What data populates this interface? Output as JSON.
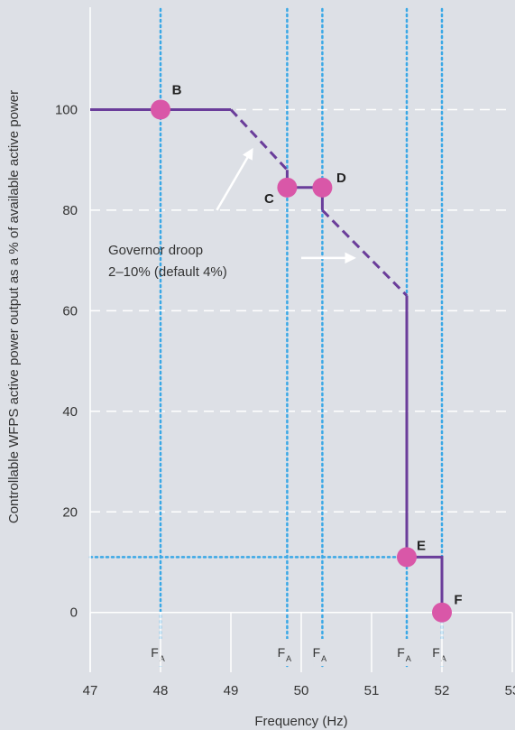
{
  "chart_data": {
    "type": "line",
    "title": "",
    "xlabel": "Frequency (Hz)",
    "ylabel": "Controllable WFPS active power output as a % of available active power",
    "xlim": [
      47,
      53
    ],
    "ylim": [
      -4,
      120
    ],
    "x_ticks": [
      47,
      48,
      49,
      50,
      51,
      52,
      53
    ],
    "y_ticks": [
      0,
      20,
      40,
      60,
      80,
      100
    ],
    "grid": "horizontal dashed white",
    "colors": {
      "line": "#6a3d9a",
      "marker": "#d957a8",
      "fa_lines": "#3aa8e6",
      "grid": "#ffffff",
      "background": "#dde0e6"
    },
    "series": [
      {
        "segments": [
          {
            "style": "solid",
            "points": [
              [
                47,
                100
              ],
              [
                49,
                100
              ]
            ]
          },
          {
            "style": "dashed",
            "points": [
              [
                49,
                100
              ],
              [
                49.8,
                88
              ]
            ]
          },
          {
            "style": "solid",
            "points": [
              [
                49.8,
                88
              ],
              [
                49.8,
                84.5
              ],
              [
                50.3,
                84.5
              ],
              [
                50.3,
                80
              ]
            ]
          },
          {
            "style": "dashed",
            "points": [
              [
                50.3,
                80
              ],
              [
                51.5,
                63
              ]
            ]
          },
          {
            "style": "solid",
            "points": [
              [
                51.5,
                63
              ],
              [
                51.5,
                11
              ],
              [
                52,
                11
              ],
              [
                52,
                0
              ]
            ]
          }
        ]
      }
    ],
    "points": [
      {
        "label": "B",
        "x": 48,
        "y": 100
      },
      {
        "label": "C",
        "x": 49.8,
        "y": 84.5
      },
      {
        "label": "D",
        "x": 50.3,
        "y": 84.5
      },
      {
        "label": "E",
        "x": 51.5,
        "y": 11
      },
      {
        "label": "F",
        "x": 52,
        "y": 0
      }
    ],
    "fa_lines": [
      {
        "x": 48,
        "label": "F",
        "sub": "A"
      },
      {
        "x": 49.8,
        "label": "F",
        "sub": "A"
      },
      {
        "x": 50.3,
        "label": "F",
        "sub": "A"
      },
      {
        "x": 51.5,
        "label": "F",
        "sub": "A"
      },
      {
        "x": 52,
        "label": "F",
        "sub": "A"
      }
    ],
    "horizontal_reference": {
      "y": 11,
      "x_from": 47,
      "x_to": 51.5
    },
    "annotation": {
      "lines": [
        "Governor droop",
        "2–10% (default 4%)"
      ],
      "arrows": [
        {
          "from": [
            48.8,
            80
          ],
          "to": [
            49.3,
            92
          ]
        },
        {
          "from": [
            50,
            70.5
          ],
          "to": [
            50.75,
            70.5
          ]
        }
      ]
    }
  }
}
